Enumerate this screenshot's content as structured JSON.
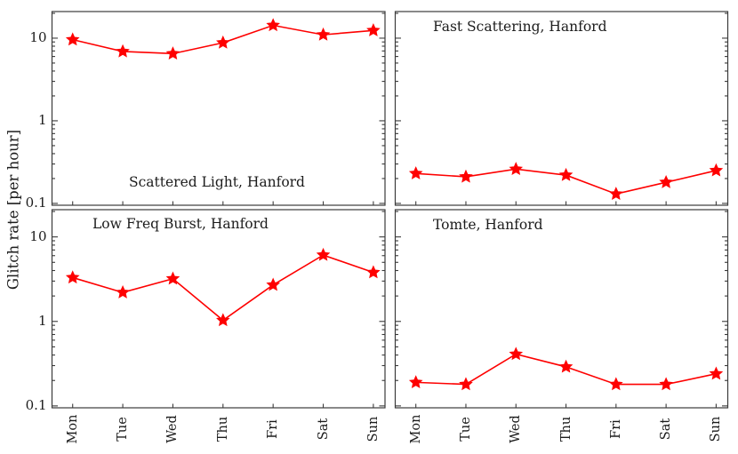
{
  "figure": {
    "ylabel": "Glitch rate [per hour]",
    "y_tick_labels": [
      "10",
      "1",
      "0.1"
    ],
    "y_tick_values": [
      10,
      1,
      0.1
    ],
    "x_tick_labels": [
      "Mon",
      "Tue",
      "Wed",
      "Thu",
      "Fri",
      "Sat",
      "Sun"
    ],
    "marker_color": "#fe0000",
    "line_color": "#fe0000",
    "frame_color": "#3b3b3b",
    "text_color": "#1c1c1c",
    "yscale": "log",
    "ylim": [
      0.095,
      21
    ],
    "grid": "off",
    "marker": "star"
  },
  "chart_data": [
    {
      "type": "line",
      "panel": "top-left",
      "title": "Scattered Light, Hanford",
      "title_position": "inside-lower-center",
      "categories": [
        "Mon",
        "Tue",
        "Wed",
        "Thu",
        "Fri",
        "Sat",
        "Sun"
      ],
      "values": [
        9.6,
        6.9,
        6.5,
        8.8,
        14.3,
        11.0,
        12.4
      ],
      "yscale": "log",
      "ylim": [
        0.095,
        21
      ]
    },
    {
      "type": "line",
      "panel": "top-right",
      "title": "Fast Scattering, Hanford",
      "title_position": "inside-upper-left",
      "categories": [
        "Mon",
        "Tue",
        "Wed",
        "Thu",
        "Fri",
        "Sat",
        "Sun"
      ],
      "values": [
        0.23,
        0.21,
        0.26,
        0.22,
        0.13,
        0.18,
        0.25
      ],
      "yscale": "log",
      "ylim": [
        0.095,
        21
      ]
    },
    {
      "type": "line",
      "panel": "bottom-left",
      "title": "Low Freq Burst, Hanford",
      "title_position": "inside-upper-left",
      "categories": [
        "Mon",
        "Tue",
        "Wed",
        "Thu",
        "Fri",
        "Sat",
        "Sun"
      ],
      "values": [
        3.3,
        2.2,
        3.2,
        1.03,
        2.7,
        6.1,
        3.8
      ],
      "yscale": "log",
      "ylim": [
        0.095,
        21
      ]
    },
    {
      "type": "line",
      "panel": "bottom-right",
      "title": "Tomte, Hanford",
      "title_position": "inside-upper-left",
      "categories": [
        "Mon",
        "Tue",
        "Wed",
        "Thu",
        "Fri",
        "Sat",
        "Sun"
      ],
      "values": [
        0.19,
        0.18,
        0.41,
        0.29,
        0.18,
        0.18,
        0.24
      ],
      "yscale": "log",
      "ylim": [
        0.095,
        21
      ]
    }
  ]
}
